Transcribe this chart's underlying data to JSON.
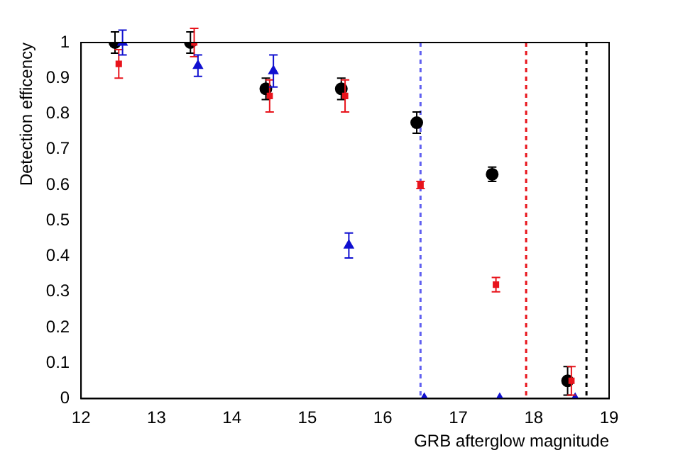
{
  "chart_data": {
    "type": "scatter",
    "xlabel": "GRB afterglow magnitude",
    "ylabel": "Detection efficency",
    "xlim": [
      12,
      19
    ],
    "xticks": [
      12,
      13,
      14,
      15,
      16,
      17,
      18,
      19
    ],
    "ylim": [
      0,
      1
    ],
    "yticks": [
      0,
      0.1,
      0.2,
      0.3,
      0.4,
      0.5,
      0.6,
      0.7,
      0.8,
      0.9,
      1
    ],
    "grid": false,
    "legend": false,
    "series": [
      {
        "color": "#000000",
        "marker": "circle",
        "x": [
          12.45,
          13.45,
          14.45,
          15.45,
          16.45,
          17.45,
          18.45
        ],
        "values": [
          1,
          1,
          0.87,
          0.87,
          0.775,
          0.63,
          0.05
        ],
        "errors": [
          0.03,
          0.03,
          0.03,
          0.03,
          0.03,
          0.02,
          0.04
        ]
      },
      {
        "color": "#e8141c",
        "marker": "square",
        "x": [
          12.5,
          13.5,
          14.5,
          15.5,
          16.5,
          17.5,
          18.5
        ],
        "values": [
          0.94,
          1,
          0.85,
          0.85,
          0.6,
          0.32,
          0.05
        ],
        "errors": [
          0.04,
          0.04,
          0.045,
          0.045,
          0.01,
          0.02,
          0.04
        ]
      },
      {
        "color": "#1010d0",
        "marker": "triangle",
        "x": [
          12.55,
          13.55,
          14.55,
          15.55,
          16.55,
          17.55,
          18.55
        ],
        "values": [
          1,
          0.935,
          0.92,
          0.43,
          0,
          0,
          0
        ],
        "errors": [
          0.035,
          0.03,
          0.045,
          0.035,
          null,
          null,
          null
        ]
      }
    ],
    "ref_lines": [
      {
        "axis": "x",
        "value": 16.5,
        "color": "#6060f0",
        "line_style": "dotted"
      },
      {
        "axis": "x",
        "value": 17.9,
        "color": "#e8141c",
        "line_style": "dotted"
      },
      {
        "axis": "x",
        "value": 18.7,
        "color": "#000000",
        "line_style": "dotted"
      }
    ]
  }
}
